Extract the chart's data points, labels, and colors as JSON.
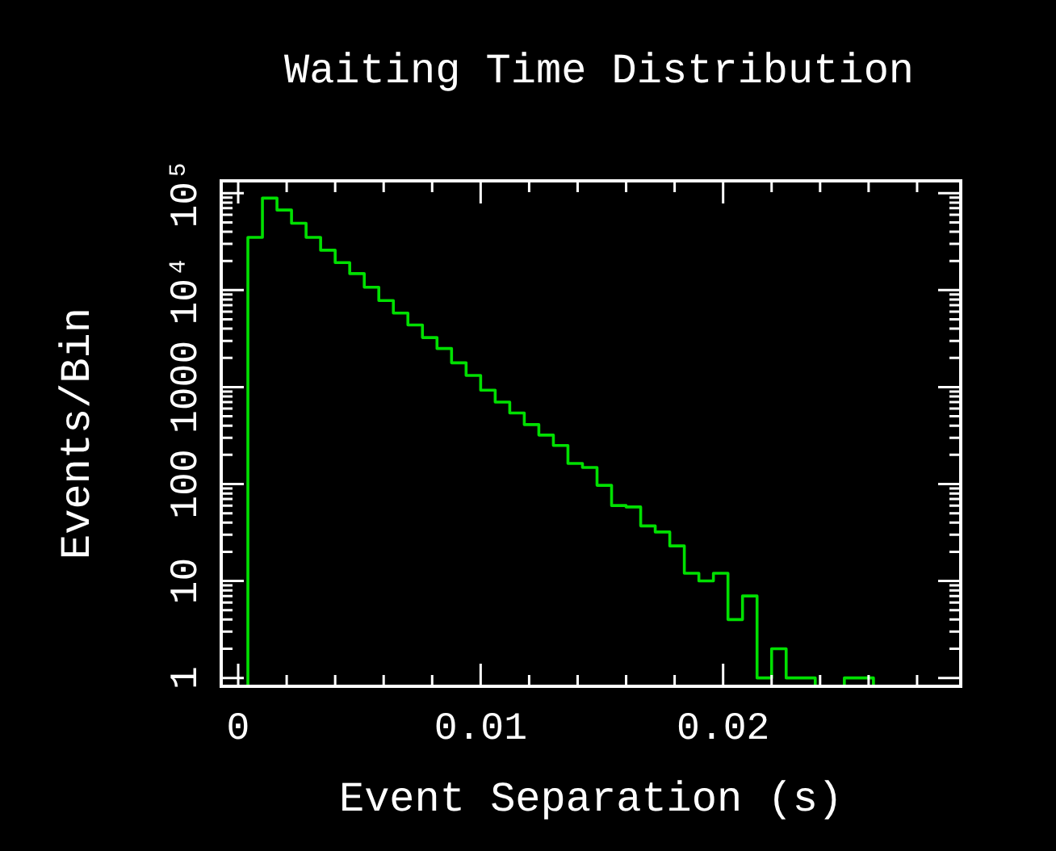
{
  "chart_data": {
    "type": "histogram",
    "title": "Waiting Time Distribution",
    "xlabel": "Event Separation (s)",
    "ylabel": "Events/Bin",
    "color": "#00e000",
    "log": "y",
    "bins": [
      0.0004,
      0.001,
      0.0016,
      0.0022,
      0.0028,
      0.0034,
      0.004,
      0.0046,
      0.0052,
      0.0058,
      0.0064,
      0.007,
      0.0076,
      0.0082,
      0.0088,
      0.0094,
      0.01,
      0.0106,
      0.0112,
      0.0118,
      0.0124,
      0.013,
      0.0136,
      0.0142,
      0.0148,
      0.0154,
      0.016,
      0.0166,
      0.0172,
      0.0178,
      0.0184,
      0.019,
      0.0196,
      0.0202,
      0.0208,
      0.0214,
      0.022,
      0.0226,
      0.0232,
      0.0238,
      0.0244,
      0.025,
      0.0256,
      0.0262,
      0.0268,
      0.0274,
      0.028,
      0.0286,
      0.0292,
      0.0298
    ],
    "values": [
      35000,
      89000,
      67000,
      49000,
      35000,
      25800,
      19200,
      14800,
      10700,
      7800,
      5800,
      4370,
      3240,
      2500,
      1780,
      1320,
      930,
      700,
      540,
      410,
      320,
      250,
      163,
      148,
      97,
      60,
      58,
      37,
      32,
      23,
      12,
      10,
      12,
      4,
      7,
      1,
      2,
      1,
      1,
      null,
      null,
      1,
      1,
      null,
      null,
      null,
      null,
      null,
      null
    ],
    "xlim": [
      -0.0007,
      0.0298
    ],
    "ylim": [
      0.82,
      134000
    ],
    "xticks": [
      0,
      {
        "value": 0.002,
        "label": null
      },
      {
        "value": 0.004,
        "label": null
      },
      {
        "value": 0.006,
        "label": null
      },
      {
        "value": 0.008,
        "label": null
      },
      0.01,
      {
        "value": 0.012,
        "label": null
      },
      {
        "value": 0.014,
        "label": null
      },
      {
        "value": 0.016,
        "label": null
      },
      {
        "value": 0.018,
        "label": null
      },
      0.02,
      {
        "value": 0.022,
        "label": null
      },
      {
        "value": 0.024,
        "label": null
      },
      {
        "value": 0.026,
        "label": null
      },
      {
        "value": 0.028,
        "label": null
      }
    ],
    "yticks": [
      1,
      {
        "value": 2,
        "label": null
      },
      {
        "value": 3,
        "label": null
      },
      {
        "value": 4,
        "label": null
      },
      {
        "value": 5,
        "label": null
      },
      {
        "value": 6,
        "label": null
      },
      {
        "value": 7,
        "label": null
      },
      {
        "value": 8,
        "label": null
      },
      {
        "value": 9,
        "label": null
      },
      10,
      {
        "value": 20,
        "label": null
      },
      {
        "value": 30,
        "label": null
      },
      {
        "value": 40,
        "label": null
      },
      {
        "value": 50,
        "label": null
      },
      {
        "value": 60,
        "label": null
      },
      {
        "value": 70,
        "label": null
      },
      {
        "value": 80,
        "label": null
      },
      {
        "value": 90,
        "label": null
      },
      100,
      {
        "value": 200,
        "label": null
      },
      {
        "value": 300,
        "label": null
      },
      {
        "value": 400,
        "label": null
      },
      {
        "value": 500,
        "label": null
      },
      {
        "value": 600,
        "label": null
      },
      {
        "value": 700,
        "label": null
      },
      {
        "value": 800,
        "label": null
      },
      {
        "value": 900,
        "label": null
      },
      1000,
      {
        "value": 2000,
        "label": null
      },
      {
        "value": 3000,
        "label": null
      },
      {
        "value": 4000,
        "label": null
      },
      {
        "value": 5000,
        "label": null
      },
      {
        "value": 6000,
        "label": null
      },
      {
        "value": 7000,
        "label": null
      },
      {
        "value": 8000,
        "label": null
      },
      {
        "value": 9000,
        "label": null
      },
      {
        "value": 10000,
        "label": "10⁴"
      },
      {
        "value": 20000,
        "label": null
      },
      {
        "value": 30000,
        "label": null
      },
      {
        "value": 40000,
        "label": null
      },
      {
        "value": 50000,
        "label": null
      },
      {
        "value": 60000,
        "label": null
      },
      {
        "value": 70000,
        "label": null
      },
      {
        "value": 80000,
        "label": null
      },
      {
        "value": 90000,
        "label": null
      },
      {
        "value": 100000,
        "label": "10⁵"
      }
    ]
  }
}
